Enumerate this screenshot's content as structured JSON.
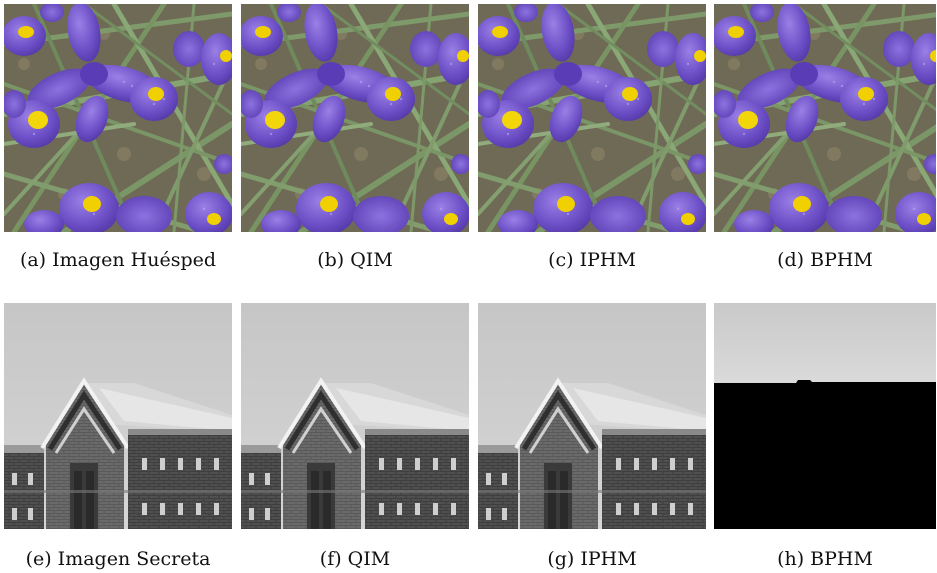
{
  "figure": {
    "rows": [
      {
        "name": "host-row",
        "panels": [
          {
            "id": "a",
            "caption": "(a) Imagen Huésped",
            "content": "iris-flowers"
          },
          {
            "id": "b",
            "caption": "(b) QIM",
            "content": "iris-flowers"
          },
          {
            "id": "c",
            "caption": "(c) IPHM",
            "content": "iris-flowers"
          },
          {
            "id": "d",
            "caption": "(d) BPHM",
            "content": "iris-flowers"
          }
        ]
      },
      {
        "name": "secret-row",
        "panels": [
          {
            "id": "e",
            "caption": "(e) Imagen Secreta",
            "content": "brick-building"
          },
          {
            "id": "f",
            "caption": "(f) QIM",
            "content": "brick-building"
          },
          {
            "id": "g",
            "caption": "(g) IPHM",
            "content": "brick-building"
          },
          {
            "id": "h",
            "caption": "(h) BPHM",
            "content": "failed-recovery-black"
          }
        ]
      }
    ]
  }
}
